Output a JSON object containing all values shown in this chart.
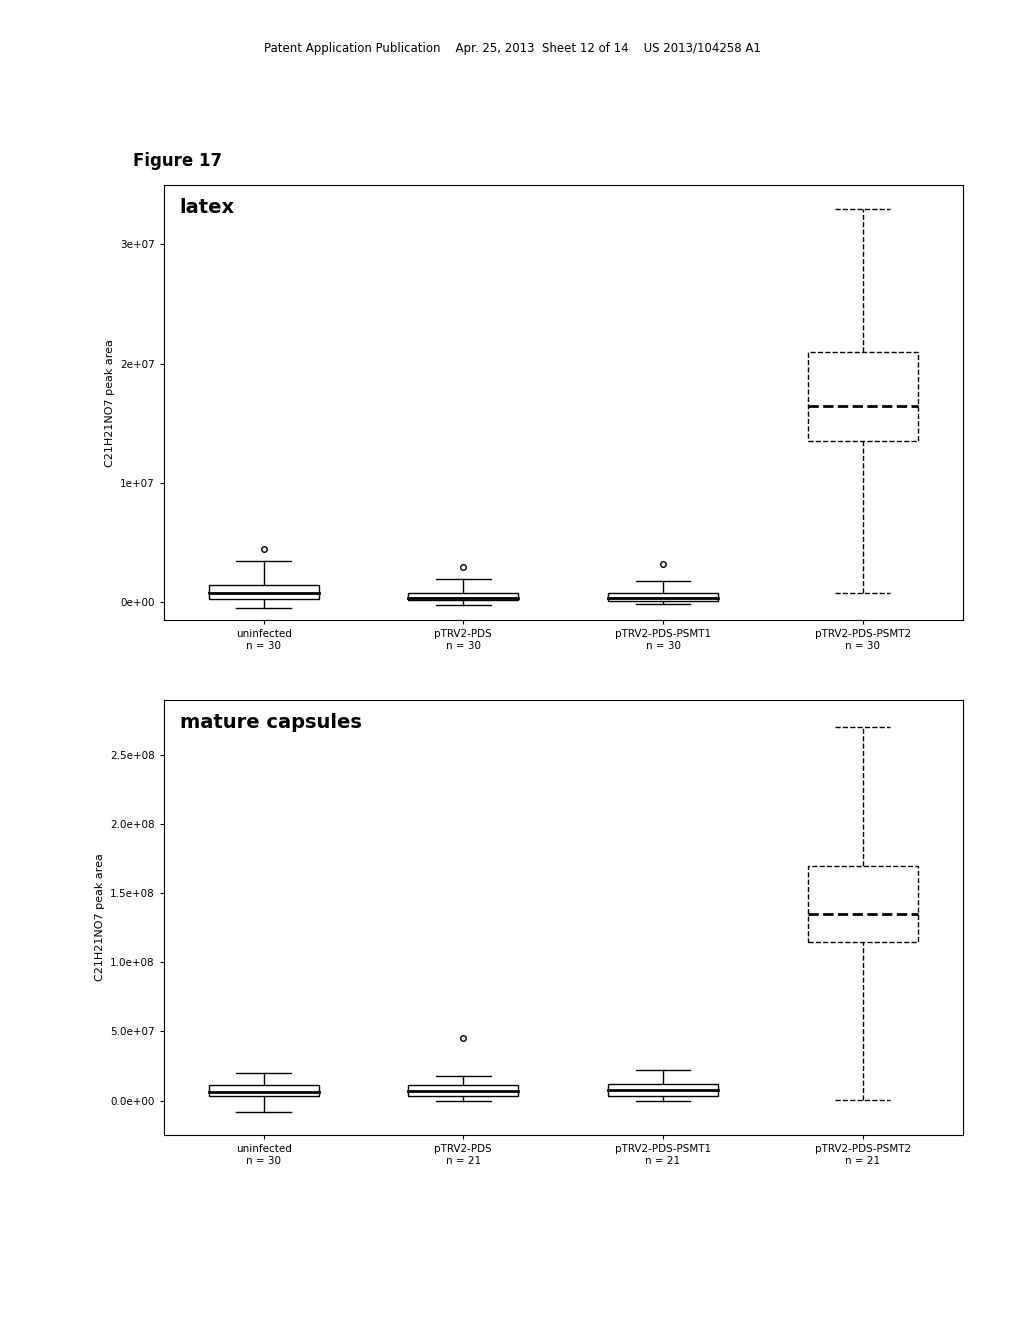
{
  "figure_label": "Figure 17",
  "header_text": "Patent Application Publication    Apr. 25, 2013  Sheet 12 of 14    US 2013/104258 A1",
  "top_plot": {
    "title": "latex",
    "ylabel": "C21H21NO7 peak area",
    "yticks": [
      0,
      1e-07,
      2e-07,
      3e-07
    ],
    "ytick_labels": [
      "0e+00",
      "1e+07",
      "2e+07",
      "3e+07"
    ],
    "ylim": [
      -1.5e-08,
      3.5e-07
    ],
    "groups": [
      {
        "label": "uninfected\nn = 30",
        "x": 1,
        "q1": 3e-09,
        "median": 8e-09,
        "q3": 1.5e-08,
        "whisker_low": -5e-09,
        "whisker_high": 3.5e-08,
        "outliers": [
          4.5e-08
        ],
        "dashed": false
      },
      {
        "label": "pTRV2-PDS\nn = 30",
        "x": 2,
        "q1": 2e-09,
        "median": 4e-09,
        "q3": 8e-09,
        "whisker_low": -2e-09,
        "whisker_high": 2e-08,
        "outliers": [
          3e-08
        ],
        "dashed": false
      },
      {
        "label": "pTRV2-PDS-PSMT1\nn = 30",
        "x": 3,
        "q1": 1.5e-09,
        "median": 4e-09,
        "q3": 8e-09,
        "whisker_low": -1e-09,
        "whisker_high": 1.8e-08,
        "outliers": [
          3.2e-08
        ],
        "dashed": false
      },
      {
        "label": "pTRV2-PDS-PSMT2\nn = 30",
        "x": 4,
        "q1": 1.35e-07,
        "median": 1.65e-07,
        "q3": 2.1e-07,
        "whisker_low": 8e-09,
        "whisker_high": 3.3e-07,
        "outliers": [],
        "dashed": true
      }
    ]
  },
  "bottom_plot": {
    "title": "mature capsules",
    "ylabel": "C21H21NO7 peak area",
    "yticks": [
      0,
      5e-07,
      1e-06,
      1.5e-06,
      2e-06,
      2.5e-06
    ],
    "ytick_labels": [
      "0.0e+00",
      "5.0e+07",
      "1.0e+08",
      "1.5e+08",
      "2.0e+08",
      "2.5e+08"
    ],
    "ylim": [
      -2.5e-07,
      2.9e-06
    ],
    "groups": [
      {
        "label": "uninfected\nn = 30",
        "x": 1,
        "q1": 3e-08,
        "median": 6.5e-08,
        "q3": 1.1e-07,
        "whisker_low": -8e-08,
        "whisker_high": 2e-07,
        "outliers": [],
        "dashed": false
      },
      {
        "label": "pTRV2-PDS\nn = 21",
        "x": 2,
        "q1": 3.5e-08,
        "median": 7e-08,
        "q3": 1.1e-07,
        "whisker_low": 0,
        "whisker_high": 1.8e-07,
        "outliers": [
          4.5e-07
        ],
        "dashed": false
      },
      {
        "label": "pTRV2-PDS-PSMT1\nn = 21",
        "x": 3,
        "q1": 3.5e-08,
        "median": 7.5e-08,
        "q3": 1.2e-07,
        "whisker_low": 0,
        "whisker_high": 2.2e-07,
        "outliers": [],
        "dashed": false
      },
      {
        "label": "pTRV2-PDS-PSMT2\nn = 21",
        "x": 4,
        "q1": 1.15e-06,
        "median": 1.35e-06,
        "q3": 1.7e-06,
        "whisker_low": 5e-09,
        "whisker_high": 2.7e-06,
        "outliers": [],
        "dashed": true
      }
    ]
  }
}
